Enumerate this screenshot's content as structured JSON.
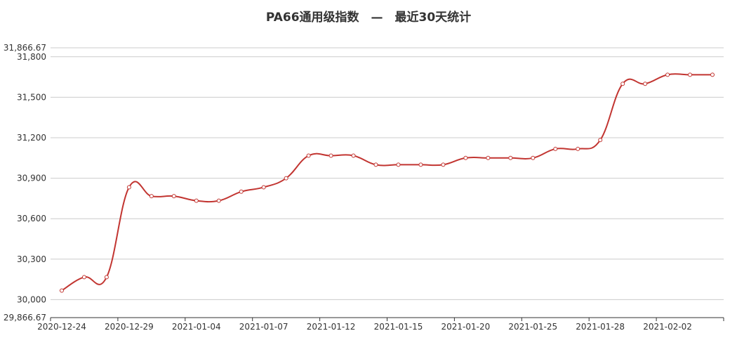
{
  "chart_data": {
    "type": "line",
    "title": "PA66通用级指数　—　最近30天统计",
    "xlabel": "",
    "ylabel": "",
    "ylim": [
      29866.67,
      31866.67
    ],
    "y_tick_values": [
      29866.67,
      30000,
      30300,
      30600,
      30900,
      31200,
      31500,
      31800,
      31866.67
    ],
    "y_tick_labels": [
      "29,866.67",
      "30,000",
      "30,300",
      "30,600",
      "30,900",
      "31,200",
      "31,500",
      "31,800",
      "31,866.67"
    ],
    "x_tick_labels": [
      "2020-12-24",
      "2020-12-29",
      "2021-01-04",
      "2021-01-07",
      "2021-01-12",
      "2021-01-15",
      "2021-01-20",
      "2021-01-25",
      "2021-01-28",
      "2021-02-02"
    ],
    "grid": true,
    "colors": {
      "line": "#c23531",
      "grid": "#cccccc",
      "axis": "#333333"
    },
    "x": [
      "2020-12-24",
      "2020-12-25",
      "2020-12-28",
      "2020-12-29",
      "2020-12-30",
      "2020-12-31",
      "2021-01-04",
      "2021-01-05",
      "2021-01-06",
      "2021-01-07",
      "2021-01-08",
      "2021-01-11",
      "2021-01-12",
      "2021-01-13",
      "2021-01-14",
      "2021-01-15",
      "2021-01-18",
      "2021-01-19",
      "2021-01-20",
      "2021-01-21",
      "2021-01-22",
      "2021-01-25",
      "2021-01-26",
      "2021-01-27",
      "2021-01-28",
      "2021-01-29",
      "2021-02-01",
      "2021-02-02",
      "2021-02-03",
      "2021-02-04"
    ],
    "series": [
      {
        "values": [
          30067,
          30167,
          30167,
          30833,
          30767,
          30767,
          30733,
          30733,
          30800,
          30833,
          30900,
          31067,
          31067,
          31067,
          31000,
          31000,
          31000,
          31000,
          31050,
          31050,
          31050,
          31050,
          31117,
          31117,
          31183,
          31600,
          31600,
          31667,
          31667,
          31667
        ]
      }
    ]
  }
}
